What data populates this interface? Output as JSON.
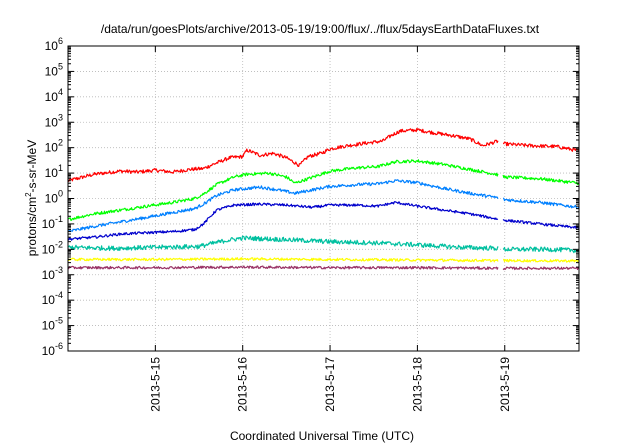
{
  "chart_data": {
    "type": "line",
    "title": "/data/run/goesPlots/archive/2013-05-19/19:00/flux/../flux/5daysEarthDataFluxes.txt",
    "xlabel": "Coordinated Universal Time (UTC)",
    "ylabel": {
      "base": "protons/cm",
      "sup": "2",
      "rest": "-s-sr-MeV"
    },
    "y_scale": "log",
    "ylim": [
      1e-06,
      1000000.0
    ],
    "xlim_days": [
      14.0,
      19.85
    ],
    "x_ticks": [
      "2013-5-15",
      "2013-5-16",
      "2013-5-17",
      "2013-5-18",
      "2013-5-19"
    ],
    "x_tick_days": [
      15,
      16,
      17,
      18,
      19
    ],
    "y_ticks": [
      {
        "exp": "6",
        "value": 1000000.0
      },
      {
        "exp": "5",
        "value": 100000.0
      },
      {
        "exp": "4",
        "value": 10000.0
      },
      {
        "exp": "3",
        "value": 1000.0
      },
      {
        "exp": "2",
        "value": 100.0
      },
      {
        "exp": "1",
        "value": 10.0
      },
      {
        "exp": "0",
        "value": 1.0
      },
      {
        "exp": "-1",
        "value": 0.1
      },
      {
        "exp": "-2",
        "value": 0.01
      },
      {
        "exp": "-3",
        "value": 0.001
      },
      {
        "exp": "-4",
        "value": 0.0001
      },
      {
        "exp": "-5",
        "value": 1e-05
      },
      {
        "exp": "-6",
        "value": 1e-06
      }
    ],
    "grid": true,
    "data_gap_days": [
      18.93,
      18.98
    ],
    "series": [
      {
        "color": "#ff0000",
        "points": [
          [
            14.0,
            5
          ],
          [
            14.3,
            9
          ],
          [
            14.6,
            12
          ],
          [
            14.8,
            11
          ],
          [
            15.0,
            13
          ],
          [
            15.2,
            11
          ],
          [
            15.4,
            14
          ],
          [
            15.55,
            15
          ],
          [
            15.7,
            25
          ],
          [
            15.85,
            40
          ],
          [
            16.0,
            45
          ],
          [
            16.05,
            80
          ],
          [
            16.2,
            50
          ],
          [
            16.35,
            60
          ],
          [
            16.5,
            40
          ],
          [
            16.65,
            20
          ],
          [
            16.75,
            45
          ],
          [
            16.9,
            60
          ],
          [
            17.0,
            90
          ],
          [
            17.2,
            120
          ],
          [
            17.4,
            150
          ],
          [
            17.6,
            180
          ],
          [
            17.7,
            300
          ],
          [
            17.8,
            450
          ],
          [
            18.0,
            500
          ],
          [
            18.2,
            380
          ],
          [
            18.4,
            300
          ],
          [
            18.6,
            220
          ],
          [
            18.75,
            120
          ],
          [
            18.92,
            180
          ],
          [
            19.0,
            140
          ],
          [
            19.3,
            120
          ],
          [
            19.6,
            110
          ],
          [
            19.85,
            75
          ]
        ]
      },
      {
        "color": "#00ff00",
        "points": [
          [
            14.0,
            0.15
          ],
          [
            14.3,
            0.25
          ],
          [
            14.6,
            0.35
          ],
          [
            14.9,
            0.5
          ],
          [
            15.2,
            0.7
          ],
          [
            15.45,
            1.0
          ],
          [
            15.55,
            1.5
          ],
          [
            15.7,
            3.5
          ],
          [
            15.9,
            7
          ],
          [
            16.05,
            9
          ],
          [
            16.3,
            10
          ],
          [
            16.5,
            7
          ],
          [
            16.6,
            4
          ],
          [
            16.75,
            6
          ],
          [
            17.0,
            12
          ],
          [
            17.3,
            16
          ],
          [
            17.55,
            18
          ],
          [
            17.75,
            28
          ],
          [
            18.0,
            30
          ],
          [
            18.3,
            22
          ],
          [
            18.6,
            14
          ],
          [
            18.9,
            9
          ],
          [
            19.0,
            7
          ],
          [
            19.4,
            6
          ],
          [
            19.85,
            4
          ]
        ]
      },
      {
        "color": "#0080ff",
        "points": [
          [
            14.0,
            0.05
          ],
          [
            14.3,
            0.08
          ],
          [
            14.6,
            0.12
          ],
          [
            14.9,
            0.18
          ],
          [
            15.2,
            0.28
          ],
          [
            15.45,
            0.4
          ],
          [
            15.55,
            0.6
          ],
          [
            15.7,
            1.3
          ],
          [
            15.9,
            2.2
          ],
          [
            16.2,
            2.8
          ],
          [
            16.4,
            2.2
          ],
          [
            16.6,
            1.6
          ],
          [
            16.8,
            2.2
          ],
          [
            17.0,
            3.0
          ],
          [
            17.3,
            3.5
          ],
          [
            17.55,
            3.8
          ],
          [
            17.75,
            5.0
          ],
          [
            18.0,
            4.2
          ],
          [
            18.3,
            2.5
          ],
          [
            18.6,
            1.6
          ],
          [
            18.9,
            1.1
          ],
          [
            19.0,
            0.9
          ],
          [
            19.4,
            0.7
          ],
          [
            19.85,
            0.45
          ]
        ]
      },
      {
        "color": "#0000cc",
        "points": [
          [
            14.0,
            0.025
          ],
          [
            14.3,
            0.03
          ],
          [
            14.6,
            0.04
          ],
          [
            14.9,
            0.045
          ],
          [
            15.2,
            0.05
          ],
          [
            15.45,
            0.06
          ],
          [
            15.55,
            0.1
          ],
          [
            15.7,
            0.35
          ],
          [
            15.9,
            0.55
          ],
          [
            16.2,
            0.6
          ],
          [
            16.5,
            0.55
          ],
          [
            16.8,
            0.45
          ],
          [
            17.0,
            0.55
          ],
          [
            17.3,
            0.55
          ],
          [
            17.55,
            0.5
          ],
          [
            17.75,
            0.7
          ],
          [
            18.0,
            0.5
          ],
          [
            18.3,
            0.35
          ],
          [
            18.6,
            0.25
          ],
          [
            18.9,
            0.16
          ],
          [
            19.0,
            0.14
          ],
          [
            19.4,
            0.1
          ],
          [
            19.85,
            0.07
          ]
        ]
      },
      {
        "color": "#00c0a0",
        "points": [
          [
            14.0,
            0.012
          ],
          [
            14.5,
            0.011
          ],
          [
            15.0,
            0.012
          ],
          [
            15.5,
            0.013
          ],
          [
            15.8,
            0.022
          ],
          [
            16.0,
            0.028
          ],
          [
            16.5,
            0.024
          ],
          [
            17.0,
            0.02
          ],
          [
            17.5,
            0.018
          ],
          [
            18.0,
            0.015
          ],
          [
            18.5,
            0.012
          ],
          [
            18.9,
            0.011
          ],
          [
            19.0,
            0.01
          ],
          [
            19.5,
            0.01
          ],
          [
            19.85,
            0.009
          ]
        ]
      },
      {
        "color": "#ffff00",
        "points": [
          [
            14.0,
            0.004
          ],
          [
            15.0,
            0.004
          ],
          [
            16.0,
            0.0042
          ],
          [
            17.0,
            0.004
          ],
          [
            18.0,
            0.0038
          ],
          [
            19.0,
            0.0036
          ],
          [
            19.85,
            0.0035
          ]
        ]
      },
      {
        "color": "#993366",
        "points": [
          [
            14.0,
            0.0019
          ],
          [
            15.0,
            0.0019
          ],
          [
            16.0,
            0.002
          ],
          [
            17.0,
            0.0019
          ],
          [
            18.0,
            0.0019
          ],
          [
            19.0,
            0.0018
          ],
          [
            19.85,
            0.0018
          ]
        ]
      }
    ]
  }
}
